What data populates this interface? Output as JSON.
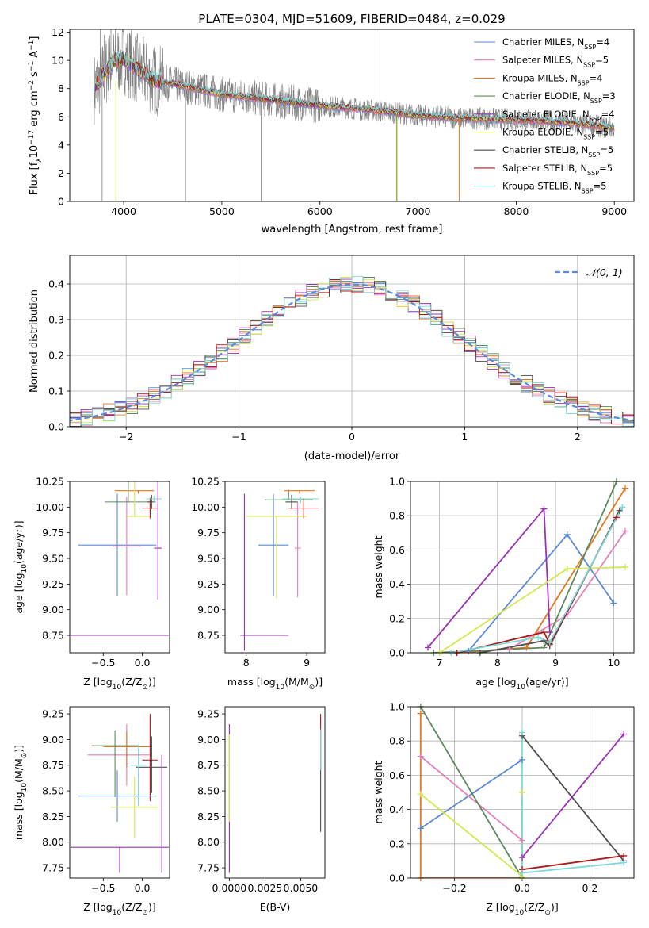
{
  "figure_title": "PLATE=0304, MJD=51609, FIBERID=0484, z=0.029",
  "colors": {
    "grid": "#b0b0b0",
    "spectrum": "#808080",
    "normal_curve": "#5b8bd8"
  },
  "models": [
    {
      "name": "Chabrier MILES",
      "nssp": 4,
      "color": "#5b8bd8"
    },
    {
      "name": "Salpeter MILES",
      "nssp": 5,
      "color": "#e67eb9"
    },
    {
      "name": "Kroupa MILES",
      "nssp": 4,
      "color": "#e8761c"
    },
    {
      "name": "Chabrier ELODIE",
      "nssp": 3,
      "color": "#5c8a5c"
    },
    {
      "name": "Salpeter ELODIE",
      "nssp": 4,
      "color": "#9b30b8"
    },
    {
      "name": "Kroupa ELODIE",
      "nssp": 5,
      "color": "#d4e84e"
    },
    {
      "name": "Chabrier STELIB",
      "nssp": 5,
      "color": "#4d4d4d"
    },
    {
      "name": "Salpeter STELIB",
      "nssp": 5,
      "color": "#b01717"
    },
    {
      "name": "Kroupa STELIB",
      "nssp": 5,
      "color": "#7ad8d8"
    }
  ],
  "chart_data": [
    {
      "id": "spectrum",
      "type": "line",
      "xlabel": "wavelength [Angstrom, rest frame]",
      "ylabel_parts": [
        "Flux [f",
        "λ",
        "10",
        "−17",
        " erg cm",
        "−2",
        " s",
        "−1",
        " A",
        "−1",
        "]"
      ],
      "xlim": [
        3450,
        9200
      ],
      "ylim": [
        0,
        12.2
      ],
      "xticks": [
        4000,
        5000,
        6000,
        7000,
        8000,
        9000
      ],
      "yticks": [
        0,
        2,
        4,
        6,
        8,
        10,
        12
      ],
      "legend_position": "top-right",
      "continuum_knots": [
        [
          3700,
          8.0
        ],
        [
          3900,
          10.0
        ],
        [
          4000,
          10.1
        ],
        [
          4100,
          9.6
        ],
        [
          4300,
          8.6
        ],
        [
          4600,
          8.2
        ],
        [
          5000,
          7.6
        ],
        [
          5500,
          7.2
        ],
        [
          6000,
          6.8
        ],
        [
          6500,
          6.5
        ],
        [
          7000,
          6.1
        ],
        [
          7400,
          5.9
        ],
        [
          8000,
          5.8
        ],
        [
          8500,
          5.6
        ],
        [
          9000,
          5.2
        ]
      ],
      "spikes": [
        [
          3760,
          12.2
        ],
        [
          3800,
          11.8
        ],
        [
          3870,
          12.2
        ],
        [
          4630,
          0.0
        ],
        [
          5400,
          0.0
        ],
        [
          6570,
          12.2
        ],
        [
          6780,
          0.0
        ],
        [
          3780,
          0.0
        ]
      ]
    },
    {
      "id": "residuals",
      "type": "step",
      "xlabel": "(data-model)/error",
      "ylabel": "Normed distribution",
      "xlim": [
        -2.5,
        2.5
      ],
      "ylim": [
        0,
        0.48
      ],
      "xticks": [
        -2,
        -1,
        0,
        1,
        2
      ],
      "yticks": [
        0.0,
        0.1,
        0.2,
        0.3,
        0.4
      ],
      "bin_width": 0.1,
      "normal_label": "𝒩(0, 1)",
      "legend_position": "top-right",
      "grid": true
    },
    {
      "id": "age_vs_Z",
      "type": "errorbar",
      "xlabel_parts": [
        "Z [log",
        "10",
        "(Z/Z",
        "⊙",
        ")]"
      ],
      "ylabel_parts": [
        "age  [log",
        "10",
        "(age/yr)]"
      ],
      "xlim": [
        -0.93,
        0.35
      ],
      "ylim": [
        8.58,
        10.25
      ],
      "xticks": [
        -0.5,
        0.0
      ],
      "yticks": [
        8.75,
        9.0,
        9.25,
        9.5,
        9.75,
        10.0,
        10.25
      ],
      "points": [
        {
          "model": 0,
          "x": -0.32,
          "xerr": [
            0.5,
            0.5
          ],
          "y": 9.63,
          "yerr": [
            0.5,
            0.5
          ]
        },
        {
          "model": 1,
          "x": -0.2,
          "xerr": [
            0.18,
            0.18
          ],
          "y": 9.62,
          "yerr": [
            0.48,
            0.48
          ]
        },
        {
          "model": 2,
          "x": -0.05,
          "xerr": [
            0.3,
            0.2
          ],
          "y": 10.16,
          "yerr": [
            0.03,
            0.0
          ]
        },
        {
          "model": 3,
          "x": -0.18,
          "xerr": [
            0.3,
            0.3
          ],
          "y": 10.05,
          "yerr": [
            0.0,
            0.25
          ]
        },
        {
          "model": 4,
          "x": -0.29,
          "xerr": [
            0.63,
            0.63
          ],
          "y": 8.75,
          "yerr": [
            0.0,
            0.0
          ]
        },
        {
          "model": 5,
          "x": -0.1,
          "xerr": [
            0.12,
            0.2
          ],
          "y": 9.91,
          "yerr": [
            0.0,
            0.8
          ]
        },
        {
          "model": 6,
          "x": 0.12,
          "xerr": [
            0.05,
            0.05
          ],
          "y": 10.05,
          "yerr": [
            0.07,
            0.07
          ]
        },
        {
          "model": 7,
          "x": 0.1,
          "xerr": [
            0.1,
            0.1
          ],
          "y": 9.99,
          "yerr": [
            0.1,
            0.1
          ]
        },
        {
          "model": 8,
          "x": 0.15,
          "xerr": [
            0.1,
            0.1
          ],
          "y": 10.08,
          "yerr": [
            0.04,
            0.03
          ]
        },
        {
          "model": 4,
          "x": 0.2,
          "xerr": [
            0.05,
            0.05
          ],
          "y": 9.6,
          "yerr": [
            0.5,
            0.95
          ]
        }
      ]
    },
    {
      "id": "age_vs_mass",
      "type": "errorbar",
      "xlabel_parts": [
        "mass [log",
        "10",
        "(M/M",
        "⊙",
        ")]"
      ],
      "xlim": [
        7.65,
        9.3
      ],
      "ylim": [
        8.58,
        10.25
      ],
      "xticks": [
        8,
        9
      ],
      "yticks": [
        8.75,
        9.0,
        9.25,
        9.5,
        9.75,
        10.0,
        10.25
      ],
      "points": [
        {
          "model": 0,
          "x": 8.45,
          "xerr": [
            0.25,
            0.25
          ],
          "y": 9.63,
          "yerr": [
            0.5,
            0.5
          ]
        },
        {
          "model": 1,
          "x": 8.85,
          "xerr": [
            0.05,
            0.05
          ],
          "y": 9.6,
          "yerr": [
            0.48,
            0.45
          ]
        },
        {
          "model": 2,
          "x": 8.88,
          "xerr": [
            0.25,
            0.25
          ],
          "y": 10.16,
          "yerr": [
            0.03,
            0.0
          ]
        },
        {
          "model": 3,
          "x": 8.7,
          "xerr": [
            0.4,
            0.4
          ],
          "y": 10.07,
          "yerr": [
            0.0,
            0.1
          ]
        },
        {
          "model": 4,
          "x": 8.3,
          "xerr": [
            0.4,
            0.4
          ],
          "y": 8.75,
          "yerr": [
            0.0,
            0.0
          ]
        },
        {
          "model": 5,
          "x": 8.5,
          "xerr": [
            0.5,
            0.5
          ],
          "y": 9.91,
          "yerr": [
            0.8,
            0.0
          ]
        },
        {
          "model": 6,
          "x": 8.75,
          "xerr": [
            0.1,
            0.1
          ],
          "y": 10.05,
          "yerr": [
            0.07,
            0.07
          ]
        },
        {
          "model": 7,
          "x": 8.95,
          "xerr": [
            0.25,
            0.25
          ],
          "y": 9.99,
          "yerr": [
            0.1,
            0.1
          ]
        },
        {
          "model": 8,
          "x": 8.9,
          "xerr": [
            0.3,
            0.3
          ],
          "y": 10.08,
          "yerr": [
            0.04,
            0.02
          ]
        },
        {
          "model": 4,
          "x": 7.97,
          "xerr": [
            0.0,
            0.0
          ],
          "y": 9.35,
          "yerr": [
            0.75,
            0.78
          ]
        }
      ]
    },
    {
      "id": "weight_vs_age",
      "type": "line",
      "xlabel_parts": [
        "age  [log",
        "10",
        "(age/yr)]"
      ],
      "ylabel": "mass weight",
      "xlim": [
        6.5,
        10.35
      ],
      "ylim": [
        0,
        1.0
      ],
      "xticks": [
        7,
        8,
        9,
        10
      ],
      "yticks": [
        0.0,
        0.2,
        0.4,
        0.6,
        0.8,
        1.0
      ],
      "grid": true,
      "series": [
        {
          "model": 0,
          "x": [
            7.5,
            9.2,
            10.0
          ],
          "y": [
            0.01,
            0.69,
            0.29
          ]
        },
        {
          "model": 1,
          "x": [
            7.3,
            8.2,
            9.2,
            10.2
          ],
          "y": [
            0.0,
            0.02,
            0.22,
            0.71
          ]
        },
        {
          "model": 2,
          "x": [
            7.3,
            8.5,
            10.2
          ],
          "y": [
            0.0,
            0.03,
            0.96
          ]
        },
        {
          "model": 3,
          "x": [
            6.9,
            8.8,
            10.05
          ],
          "y": [
            0.0,
            0.03,
            1.0
          ]
        },
        {
          "model": 4,
          "x": [
            6.8,
            8.8,
            8.9
          ],
          "y": [
            0.03,
            0.84,
            0.12
          ]
        },
        {
          "model": 5,
          "x": [
            7.0,
            9.2,
            10.2
          ],
          "y": [
            0.0,
            0.49,
            0.5
          ]
        },
        {
          "model": 6,
          "x": [
            7.7,
            8.8,
            8.9,
            10.1
          ],
          "y": [
            0.0,
            0.07,
            0.04,
            0.83
          ]
        },
        {
          "model": 7,
          "x": [
            7.3,
            8.8,
            8.9,
            10.05
          ],
          "y": [
            0.0,
            0.12,
            0.05,
            0.79
          ]
        },
        {
          "model": 8,
          "x": [
            7.2,
            8.7,
            8.9,
            10.15
          ],
          "y": [
            0.0,
            0.09,
            0.06,
            0.85
          ]
        }
      ]
    },
    {
      "id": "mass_vs_Z",
      "type": "errorbar",
      "xlabel_parts": [
        "Z [log",
        "10",
        "(Z/Z",
        "⊙",
        ")]"
      ],
      "ylabel_parts": [
        "mass [log",
        "10",
        "(M/M",
        "⊙",
        ")]"
      ],
      "xlim": [
        -0.93,
        0.35
      ],
      "ylim": [
        7.65,
        9.32
      ],
      "xticks": [
        -0.5,
        0.0
      ],
      "yticks": [
        7.75,
        8.0,
        8.25,
        8.5,
        8.75,
        9.0,
        9.25
      ],
      "points": [
        {
          "model": 0,
          "x": -0.32,
          "xerr": [
            0.5,
            0.5
          ],
          "y": 8.45,
          "yerr": [
            0.25,
            0.25
          ]
        },
        {
          "model": 1,
          "x": -0.2,
          "xerr": [
            0.5,
            0.3
          ],
          "y": 8.85,
          "yerr": [
            0.3,
            0.3
          ]
        },
        {
          "model": 2,
          "x": -0.2,
          "xerr": [
            0.3,
            0.3
          ],
          "y": 8.93,
          "yerr": [
            0.2,
            0.15
          ]
        },
        {
          "model": 3,
          "x": -0.35,
          "xerr": [
            0.3,
            0.3
          ],
          "y": 8.94,
          "yerr": [
            0.5,
            0.15
          ]
        },
        {
          "model": 4,
          "x": -0.29,
          "xerr": [
            0.63,
            0.63
          ],
          "y": 7.95,
          "yerr": [
            0.25,
            0.0
          ]
        },
        {
          "model": 5,
          "x": -0.1,
          "xerr": [
            0.3,
            0.3
          ],
          "y": 8.34,
          "yerr": [
            0.3,
            0.3
          ]
        },
        {
          "model": 6,
          "x": 0.12,
          "xerr": [
            0.2,
            0.2
          ],
          "y": 8.73,
          "yerr": [
            0.25,
            0.3
          ]
        },
        {
          "model": 7,
          "x": 0.1,
          "xerr": [
            0.1,
            0.1
          ],
          "y": 8.8,
          "yerr": [
            0.4,
            0.45
          ]
        },
        {
          "model": 8,
          "x": -0.05,
          "xerr": [
            0.1,
            0.1
          ],
          "y": 8.75,
          "yerr": [
            0.4,
            0.2
          ]
        },
        {
          "model": 4,
          "x": 0.25,
          "xerr": [
            0.0,
            0.0
          ],
          "y": 8.35,
          "yerr": [
            0.65,
            0.5
          ]
        }
      ]
    },
    {
      "id": "mass_vs_ebv",
      "type": "errorbar",
      "xlabel": "E(B-V)",
      "xlim": [
        -0.0003,
        0.0067
      ],
      "ylim": [
        7.65,
        9.32
      ],
      "xticks": [
        0.0,
        0.0025,
        0.005
      ],
      "tick_labels": [
        "0.0000",
        "0.0025",
        "0.0050"
      ],
      "yticks": [
        7.75,
        8.0,
        8.25,
        8.5,
        8.75,
        9.0,
        9.25
      ],
      "points": [
        {
          "model": 4,
          "x": 0.0,
          "xerr": [
            0,
            0
          ],
          "y": 8.4,
          "yerr": [
            0.7,
            0.75
          ]
        },
        {
          "model": 5,
          "x": 0.0,
          "xerr": [
            0,
            0
          ],
          "y": 8.6,
          "yerr": [
            0.4,
            0.45
          ]
        },
        {
          "model": 6,
          "x": 0.0064,
          "xerr": [
            0,
            0
          ],
          "y": 8.6,
          "yerr": [
            0.5,
            0.5
          ]
        },
        {
          "model": 7,
          "x": 0.0064,
          "xerr": [
            0,
            0
          ],
          "y": 8.9,
          "yerr": [
            0.2,
            0.35
          ]
        },
        {
          "model": 8,
          "x": 0.0064,
          "xerr": [
            0,
            0
          ],
          "y": 8.85,
          "yerr": [
            0.15,
            0.25
          ]
        }
      ]
    },
    {
      "id": "weight_vs_Z",
      "type": "line",
      "xlabel_parts": [
        "Z [log",
        "10",
        "(Z/Z",
        "⊙",
        ")]"
      ],
      "ylabel": "mass weight",
      "xlim": [
        -0.33,
        0.33
      ],
      "ylim": [
        0,
        1.0
      ],
      "xticks": [
        -0.2,
        0.0,
        0.2
      ],
      "yticks": [
        0.0,
        0.2,
        0.4,
        0.6,
        0.8,
        1.0
      ],
      "grid": true,
      "series": [
        {
          "model": 0,
          "x": [
            -0.3,
            0.0
          ],
          "y": [
            0.29,
            0.69
          ]
        },
        {
          "model": 1,
          "x": [
            -0.3,
            0.0,
            0.0
          ],
          "y": [
            0.71,
            0.22,
            0.0
          ]
        },
        {
          "model": 2,
          "x": [
            -0.3,
            -0.3,
            0.0
          ],
          "y": [
            0.96,
            0.0,
            0.0
          ]
        },
        {
          "model": 3,
          "x": [
            -0.3,
            0.0
          ],
          "y": [
            1.0,
            0.0
          ]
        },
        {
          "model": 4,
          "x": [
            0.0,
            0.3
          ],
          "y": [
            0.12,
            0.84
          ]
        },
        {
          "model": 5,
          "x": [
            -0.3,
            0.0,
            0.0
          ],
          "y": [
            0.49,
            0.01,
            0.5
          ]
        },
        {
          "model": 6,
          "x": [
            0.0,
            0.3
          ],
          "y": [
            0.83,
            0.1
          ]
        },
        {
          "model": 7,
          "x": [
            0.0,
            0.3
          ],
          "y": [
            0.05,
            0.13
          ]
        },
        {
          "model": 8,
          "x": [
            0.0,
            0.0,
            0.3
          ],
          "y": [
            0.85,
            0.03,
            0.09
          ]
        }
      ]
    }
  ]
}
